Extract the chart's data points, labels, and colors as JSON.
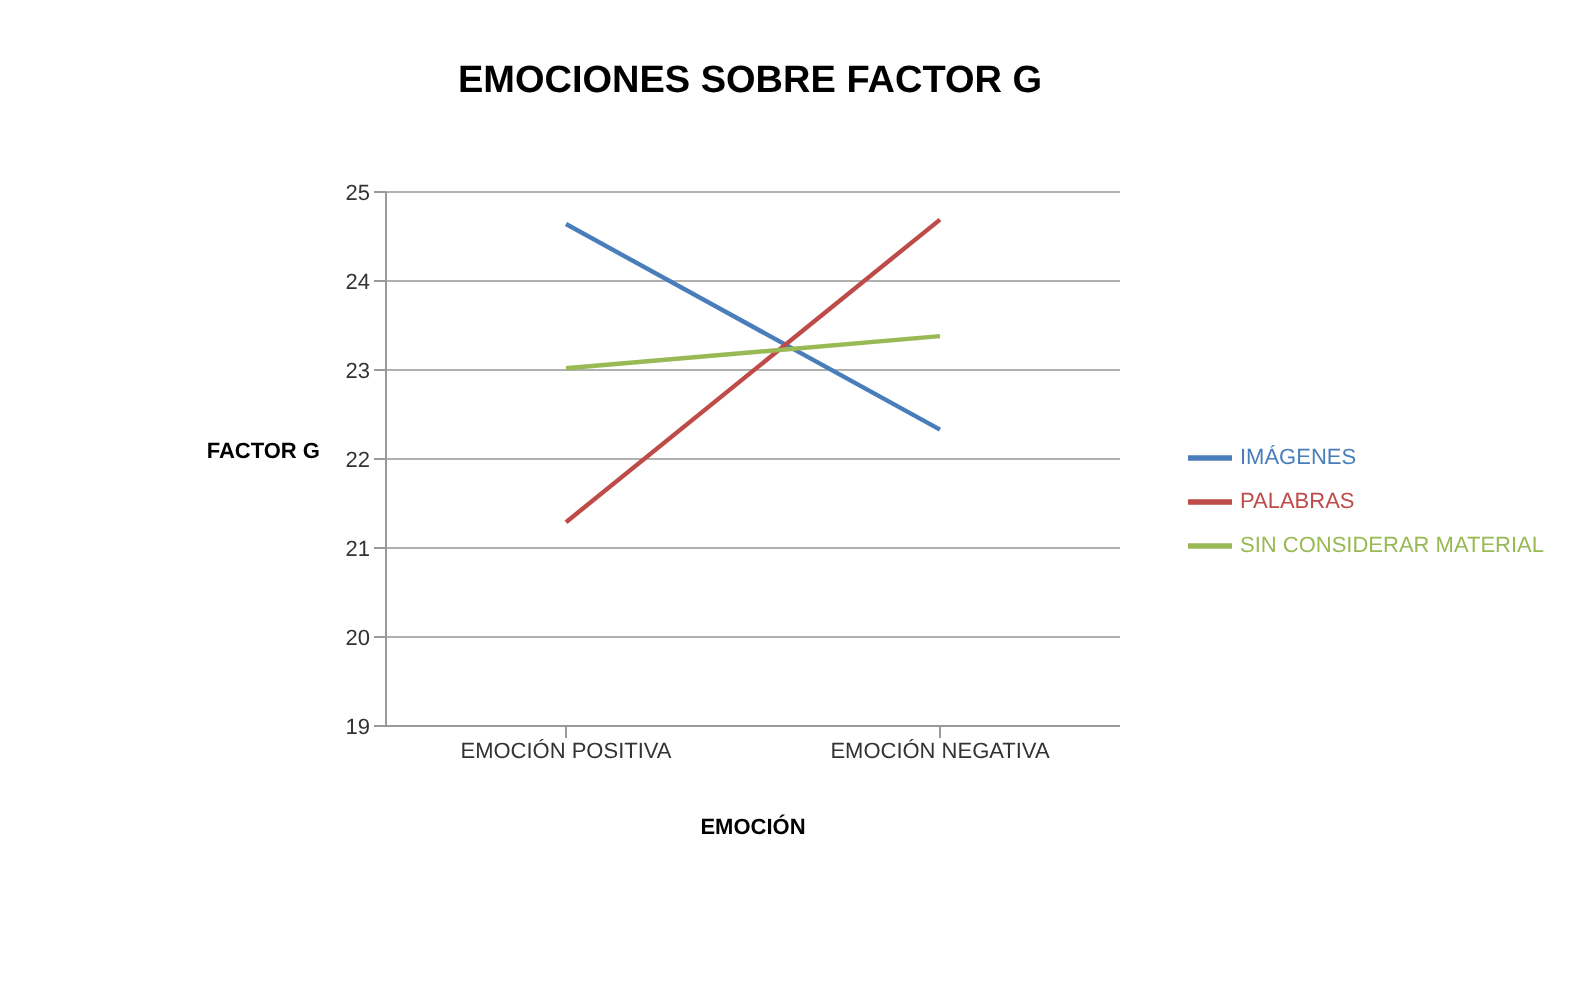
{
  "chart_data": {
    "type": "line",
    "title": "EMOCIONES SOBRE FACTOR G",
    "xlabel": "EMOCIÓN",
    "ylabel": "FACTOR G",
    "categories": [
      "EMOCIÓN POSITIVA",
      "EMOCIÓN NEGATIVA"
    ],
    "series": [
      {
        "name": "IMÁGENES",
        "color": "#4a7ebb",
        "values": [
          24.64,
          22.33
        ]
      },
      {
        "name": "PALABRAS",
        "color": "#be4b48",
        "values": [
          21.29,
          24.69
        ]
      },
      {
        "name": "SIN CONSIDERAR MATERIAL",
        "color": "#98b954",
        "values": [
          23.02,
          23.38
        ]
      }
    ],
    "ylim": [
      19,
      25
    ],
    "yticks": [
      19,
      20,
      21,
      22,
      23,
      24,
      25
    ],
    "grid": "y",
    "legend": "right",
    "marker": "none",
    "line_style": "solid"
  }
}
